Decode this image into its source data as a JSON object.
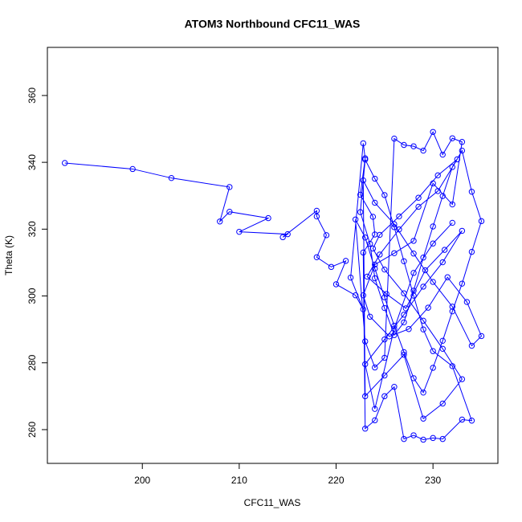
{
  "chart_data": {
    "type": "scatter",
    "title": "ATOM3 Northbound CFC11_WAS",
    "x_label": "CFC11_WAS",
    "y_label": "Theta (K)",
    "color": "#0000ff",
    "x": [
      192,
      199,
      203,
      209,
      208,
      209,
      213,
      210,
      215,
      214.5,
      218,
      218,
      219,
      218,
      219.5,
      221,
      220,
      222,
      222.8,
      221.5,
      222.8,
      223,
      222.5,
      223.8,
      224,
      222.8,
      223,
      224,
      225,
      226,
      227,
      228,
      229,
      230,
      231,
      233,
      234,
      232,
      230,
      229,
      228,
      227,
      226,
      225,
      224,
      223,
      222.5,
      223.5,
      224,
      225,
      226,
      227,
      228,
      229,
      230,
      231,
      232,
      233,
      234,
      235,
      234,
      233,
      232,
      231,
      230,
      229,
      228,
      227,
      226,
      225,
      224,
      223,
      222,
      223,
      224,
      225,
      226,
      227,
      228,
      229,
      230,
      231,
      232,
      233,
      232,
      230,
      228,
      226,
      224,
      222.8,
      223.5,
      225.5,
      227.5,
      229.5,
      231.5,
      233.5,
      235,
      234,
      232,
      230,
      228,
      226,
      224,
      222.8,
      223,
      225,
      227,
      229,
      231,
      233,
      231,
      229,
      227,
      225,
      223.8,
      224.5,
      226.5,
      228.5,
      230.5,
      232.5,
      230.5,
      228.5,
      226.5,
      224.5,
      223.2,
      225.2,
      227.2,
      229.2,
      231.2,
      233,
      231,
      229,
      227,
      225,
      223,
      224,
      226,
      228,
      230,
      232
    ],
    "y": [
      339.8,
      338,
      335.3,
      332.6,
      322.3,
      325.2,
      323.3,
      319.2,
      318.5,
      317.6,
      325.5,
      323.8,
      318.2,
      311.6,
      308.7,
      310.5,
      303.5,
      300.2,
      296,
      305.5,
      345.7,
      341.2,
      330.3,
      323.7,
      318.4,
      313,
      260.3,
      262.8,
      270,
      272.8,
      257.2,
      258.3,
      257,
      257.5,
      257.2,
      263,
      262.7,
      279,
      283.5,
      290,
      300.1,
      310.4,
      320.6,
      330.2,
      335.1,
      340.8,
      325.1,
      315.6,
      305.3,
      296.4,
      288.3,
      292.1,
      301.6,
      311.5,
      320.8,
      329.9,
      338.6,
      343.5,
      331.2,
      322.4,
      313.2,
      303.7,
      295.4,
      286.6,
      278.5,
      271.1,
      275.4,
      283.2,
      291.1,
      299.6,
      308.2,
      317.5,
      322.9,
      286.4,
      278.6,
      281.5,
      347.1,
      345.2,
      344.8,
      343.5,
      349.1,
      342.3,
      347.2,
      346.1,
      327.4,
      333.7,
      316.5,
      312.8,
      309.4,
      300.2,
      293.8,
      287.9,
      290.1,
      296.5,
      305.6,
      298.2,
      288,
      285.1,
      296.8,
      304.2,
      312.7,
      321.5,
      327.9,
      334.6,
      270,
      276.2,
      282.4,
      263.3,
      267.8,
      275.1,
      284.2,
      292.6,
      300.8,
      307.9,
      314.2,
      318.3,
      323.8,
      329.4,
      336.1,
      340.9,
      331.4,
      326.7,
      319.9,
      312.4,
      305.8,
      300.6,
      296.3,
      307.7,
      313.8,
      319.5,
      310.1,
      302.8,
      294.4,
      287,
      279.6,
      266.2,
      290.2,
      306.9,
      315.7,
      321.9
    ],
    "xlim": [
      190.2,
      236.7
    ],
    "xticks": [
      200,
      210,
      220,
      230
    ],
    "ylim": [
      249.9,
      374.4
    ],
    "yticks": [
      260,
      280,
      300,
      320,
      340,
      360
    ]
  }
}
